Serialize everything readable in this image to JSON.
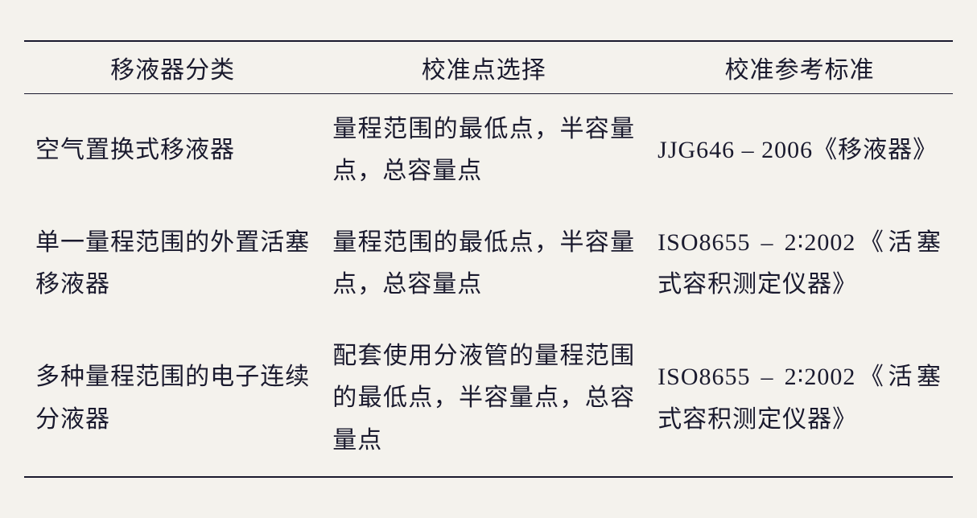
{
  "table": {
    "columns": [
      "移液器分类",
      "校准点选择",
      "校准参考标准"
    ],
    "rows": [
      {
        "category": "空气置换式移液器",
        "point": "量程范围的最低点，半容量点，总容量点",
        "standard": "JJG646 – 2006《移液器》"
      },
      {
        "category": "单一量程范围的外置活塞移液器",
        "point": "量程范围的最低点，半容量点，总容量点",
        "standard": "ISO8655 – 2∶2002《活塞式容积测定仪器》"
      },
      {
        "category": "多种量程范围的电子连续分液器",
        "point": "配套使用分液管的量程范围的最低点，半容量点，总容量点",
        "standard": "ISO8655 – 2∶2002《活塞式容积测定仪器》"
      }
    ],
    "styling": {
      "background_color": "#f4f2ed",
      "text_color": "#1a1a2e",
      "border_color": "#1a1a2e",
      "header_fontsize": 30,
      "cell_fontsize": 30,
      "font_family": "SimSun",
      "top_border_width": 2,
      "header_bottom_border_width": 1.5,
      "bottom_border_width": 2,
      "column_widths_pct": [
        32,
        35,
        33
      ],
      "line_height": 1.75
    }
  }
}
